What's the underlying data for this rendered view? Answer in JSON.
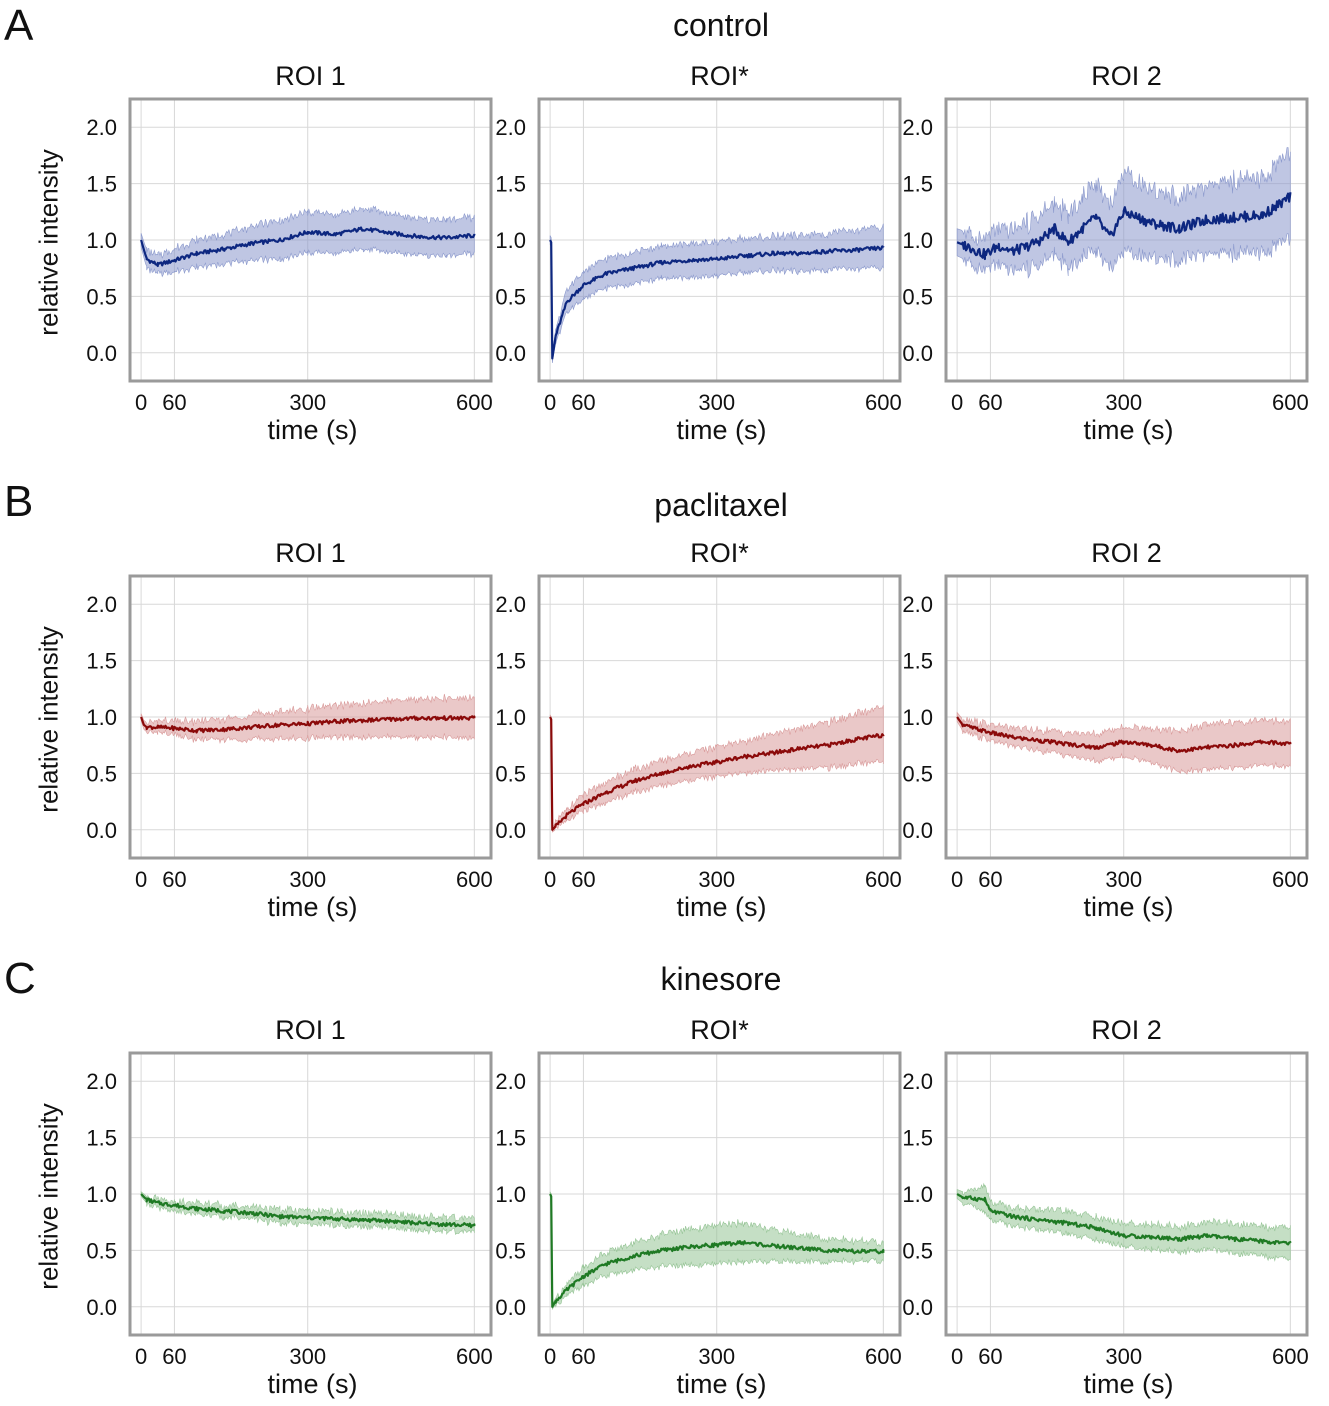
{
  "figure": {
    "panels": [
      {
        "letter": "A",
        "title": "control"
      },
      {
        "letter": "B",
        "title": "paclitaxel"
      },
      {
        "letter": "C",
        "title": "kinesore"
      }
    ],
    "ylabel": "relative intensity",
    "colors": {
      "control": "#0d2780",
      "paclitaxel": "#8b0a0a",
      "kinesore": "#1f7a24",
      "control_band": "#8a98cc",
      "paclitaxel_band": "#d99a9a",
      "kinesore_band": "#95c495",
      "frame": "#9a9a9a",
      "grid": "#d8d8d8"
    }
  },
  "chart_data": [
    {
      "type": "line",
      "panel": "A",
      "title": "ROI 1",
      "xlabel": "time (s)",
      "ylabel": "relative intensity",
      "xlim": [
        -20,
        630
      ],
      "ylim": [
        -0.25,
        2.25
      ],
      "xticks": [
        "0",
        "60",
        "300",
        "600"
      ],
      "yticks": [
        "0.0",
        "0.5",
        "1.0",
        "1.5",
        "2.0"
      ],
      "series": [
        {
          "name": "mean",
          "x": [
            0,
            10,
            30,
            60,
            100,
            150,
            200,
            250,
            300,
            350,
            400,
            450,
            500,
            550,
            600
          ],
          "values": [
            1.0,
            0.83,
            0.78,
            0.82,
            0.88,
            0.92,
            0.97,
            1.0,
            1.07,
            1.05,
            1.1,
            1.06,
            1.03,
            1.02,
            1.04
          ],
          "band": [
            0.06,
            0.08,
            0.08,
            0.1,
            0.12,
            0.13,
            0.15,
            0.17,
            0.18,
            0.17,
            0.18,
            0.17,
            0.16,
            0.16,
            0.16
          ]
        }
      ]
    },
    {
      "type": "line",
      "panel": "A",
      "title": "ROI*",
      "xlabel": "time (s)",
      "ylabel": "relative intensity",
      "xlim": [
        -20,
        630
      ],
      "ylim": [
        -0.25,
        2.25
      ],
      "xticks": [
        "0",
        "60",
        "300",
        "600"
      ],
      "yticks": [
        "0.0",
        "0.5",
        "1.0",
        "1.5",
        "2.0"
      ],
      "series": [
        {
          "name": "mean",
          "x": [
            0,
            2,
            4,
            10,
            30,
            60,
            100,
            150,
            200,
            250,
            300,
            350,
            400,
            450,
            500,
            550,
            600
          ],
          "values": [
            1.0,
            0.98,
            -0.05,
            0.15,
            0.45,
            0.6,
            0.7,
            0.75,
            0.8,
            0.82,
            0.83,
            0.86,
            0.88,
            0.88,
            0.9,
            0.91,
            0.93
          ],
          "band": [
            0.04,
            0.04,
            0.04,
            0.06,
            0.1,
            0.12,
            0.13,
            0.14,
            0.14,
            0.15,
            0.15,
            0.15,
            0.15,
            0.16,
            0.16,
            0.17,
            0.18
          ]
        }
      ]
    },
    {
      "type": "line",
      "panel": "A",
      "title": "ROI 2",
      "xlabel": "time (s)",
      "ylabel": "relative intensity",
      "xlim": [
        -20,
        630
      ],
      "ylim": [
        -0.25,
        2.25
      ],
      "xticks": [
        "0",
        "60",
        "300",
        "600"
      ],
      "yticks": [
        "0.0",
        "0.5",
        "1.0",
        "1.5",
        "2.0"
      ],
      "series": [
        {
          "name": "mean",
          "x": [
            0,
            25,
            50,
            75,
            100,
            125,
            150,
            175,
            200,
            225,
            250,
            275,
            300,
            350,
            400,
            450,
            500,
            550,
            600
          ],
          "values": [
            0.98,
            0.93,
            0.87,
            0.95,
            0.9,
            0.94,
            1.0,
            1.1,
            0.98,
            1.1,
            1.2,
            1.02,
            1.25,
            1.15,
            1.1,
            1.18,
            1.2,
            1.22,
            1.38
          ],
          "band": [
            0.12,
            0.13,
            0.14,
            0.16,
            0.18,
            0.2,
            0.22,
            0.22,
            0.24,
            0.26,
            0.3,
            0.28,
            0.35,
            0.3,
            0.28,
            0.3,
            0.32,
            0.33,
            0.38
          ]
        }
      ]
    },
    {
      "type": "line",
      "panel": "B",
      "title": "ROI 1",
      "xlabel": "time (s)",
      "ylabel": "relative intensity",
      "xlim": [
        -20,
        630
      ],
      "ylim": [
        -0.25,
        2.25
      ],
      "xticks": [
        "0",
        "60",
        "300",
        "600"
      ],
      "yticks": [
        "0.0",
        "0.5",
        "1.0",
        "1.5",
        "2.0"
      ],
      "series": [
        {
          "name": "mean",
          "x": [
            0,
            5,
            10,
            30,
            60,
            100,
            150,
            200,
            250,
            300,
            350,
            400,
            450,
            500,
            550,
            600
          ],
          "values": [
            1.0,
            0.93,
            0.91,
            0.91,
            0.9,
            0.88,
            0.89,
            0.91,
            0.93,
            0.94,
            0.96,
            0.97,
            0.98,
            0.99,
            0.99,
            0.99
          ],
          "band": [
            0.03,
            0.04,
            0.04,
            0.05,
            0.06,
            0.08,
            0.09,
            0.11,
            0.12,
            0.13,
            0.14,
            0.15,
            0.16,
            0.17,
            0.17,
            0.18
          ]
        }
      ]
    },
    {
      "type": "line",
      "panel": "B",
      "title": "ROI*",
      "xlabel": "time (s)",
      "ylabel": "relative intensity",
      "xlim": [
        -20,
        630
      ],
      "ylim": [
        -0.25,
        2.25
      ],
      "xticks": [
        "0",
        "60",
        "300",
        "600"
      ],
      "yticks": [
        "0.0",
        "0.5",
        "1.0",
        "1.5",
        "2.0"
      ],
      "series": [
        {
          "name": "mean",
          "x": [
            0,
            2,
            4,
            10,
            30,
            60,
            100,
            150,
            200,
            250,
            300,
            350,
            400,
            450,
            500,
            550,
            600
          ],
          "values": [
            1.0,
            0.98,
            0.0,
            0.03,
            0.13,
            0.23,
            0.33,
            0.43,
            0.5,
            0.56,
            0.6,
            0.65,
            0.68,
            0.72,
            0.75,
            0.8,
            0.84
          ],
          "band": [
            0.02,
            0.02,
            0.02,
            0.03,
            0.05,
            0.07,
            0.09,
            0.1,
            0.11,
            0.12,
            0.13,
            0.14,
            0.16,
            0.18,
            0.2,
            0.22,
            0.24
          ]
        }
      ]
    },
    {
      "type": "line",
      "panel": "B",
      "title": "ROI 2",
      "xlabel": "time (s)",
      "ylabel": "relative intensity",
      "xlim": [
        -20,
        630
      ],
      "ylim": [
        -0.25,
        2.25
      ],
      "xticks": [
        "0",
        "60",
        "300",
        "600"
      ],
      "yticks": [
        "0.0",
        "0.5",
        "1.0",
        "1.5",
        "2.0"
      ],
      "series": [
        {
          "name": "mean",
          "x": [
            0,
            10,
            30,
            60,
            100,
            150,
            200,
            250,
            300,
            350,
            400,
            450,
            500,
            550,
            600
          ],
          "values": [
            1.0,
            0.93,
            0.9,
            0.86,
            0.82,
            0.79,
            0.76,
            0.73,
            0.78,
            0.75,
            0.7,
            0.73,
            0.75,
            0.78,
            0.76
          ],
          "band": [
            0.04,
            0.05,
            0.06,
            0.07,
            0.08,
            0.09,
            0.1,
            0.12,
            0.13,
            0.15,
            0.18,
            0.2,
            0.2,
            0.2,
            0.2
          ]
        }
      ]
    },
    {
      "type": "line",
      "panel": "C",
      "title": "ROI 1",
      "xlabel": "time (s)",
      "ylabel": "relative intensity",
      "xlim": [
        -20,
        630
      ],
      "ylim": [
        -0.25,
        2.25
      ],
      "xticks": [
        "0",
        "60",
        "300",
        "600"
      ],
      "yticks": [
        "0.0",
        "0.5",
        "1.0",
        "1.5",
        "2.0"
      ],
      "series": [
        {
          "name": "mean",
          "x": [
            0,
            10,
            30,
            60,
            100,
            150,
            200,
            250,
            300,
            350,
            400,
            450,
            500,
            550,
            600
          ],
          "values": [
            1.0,
            0.95,
            0.92,
            0.9,
            0.87,
            0.85,
            0.83,
            0.8,
            0.79,
            0.78,
            0.77,
            0.76,
            0.74,
            0.73,
            0.72
          ],
          "band": [
            0.02,
            0.03,
            0.04,
            0.04,
            0.05,
            0.05,
            0.05,
            0.06,
            0.06,
            0.06,
            0.06,
            0.06,
            0.06,
            0.06,
            0.06
          ]
        }
      ]
    },
    {
      "type": "line",
      "panel": "C",
      "title": "ROI*",
      "xlabel": "time (s)",
      "ylabel": "relative intensity",
      "xlim": [
        -20,
        630
      ],
      "ylim": [
        -0.25,
        2.25
      ],
      "xticks": [
        "0",
        "60",
        "300",
        "600"
      ],
      "yticks": [
        "0.0",
        "0.5",
        "1.0",
        "1.5",
        "2.0"
      ],
      "series": [
        {
          "name": "mean",
          "x": [
            0,
            2,
            4,
            10,
            30,
            60,
            100,
            150,
            200,
            250,
            300,
            350,
            400,
            450,
            500,
            550,
            600
          ],
          "values": [
            1.0,
            0.98,
            0.0,
            0.05,
            0.15,
            0.27,
            0.38,
            0.45,
            0.5,
            0.53,
            0.55,
            0.57,
            0.54,
            0.52,
            0.5,
            0.49,
            0.49
          ],
          "band": [
            0.02,
            0.02,
            0.02,
            0.03,
            0.05,
            0.08,
            0.1,
            0.12,
            0.14,
            0.16,
            0.17,
            0.17,
            0.14,
            0.12,
            0.1,
            0.09,
            0.08
          ]
        }
      ]
    },
    {
      "type": "line",
      "panel": "C",
      "title": "ROI 2",
      "xlabel": "time (s)",
      "ylabel": "relative intensity",
      "xlim": [
        -20,
        630
      ],
      "ylim": [
        -0.25,
        2.25
      ],
      "xticks": [
        "0",
        "60",
        "300",
        "600"
      ],
      "yticks": [
        "0.0",
        "0.5",
        "1.0",
        "1.5",
        "2.0"
      ],
      "series": [
        {
          "name": "mean",
          "x": [
            0,
            10,
            30,
            50,
            60,
            100,
            150,
            200,
            250,
            300,
            350,
            400,
            450,
            500,
            550,
            600
          ],
          "values": [
            1.0,
            0.97,
            0.96,
            0.95,
            0.85,
            0.8,
            0.77,
            0.74,
            0.7,
            0.63,
            0.62,
            0.6,
            0.63,
            0.6,
            0.58,
            0.56
          ],
          "band": [
            0.04,
            0.05,
            0.07,
            0.12,
            0.08,
            0.08,
            0.09,
            0.1,
            0.1,
            0.1,
            0.11,
            0.11,
            0.12,
            0.13,
            0.13,
            0.14
          ]
        }
      ]
    }
  ]
}
